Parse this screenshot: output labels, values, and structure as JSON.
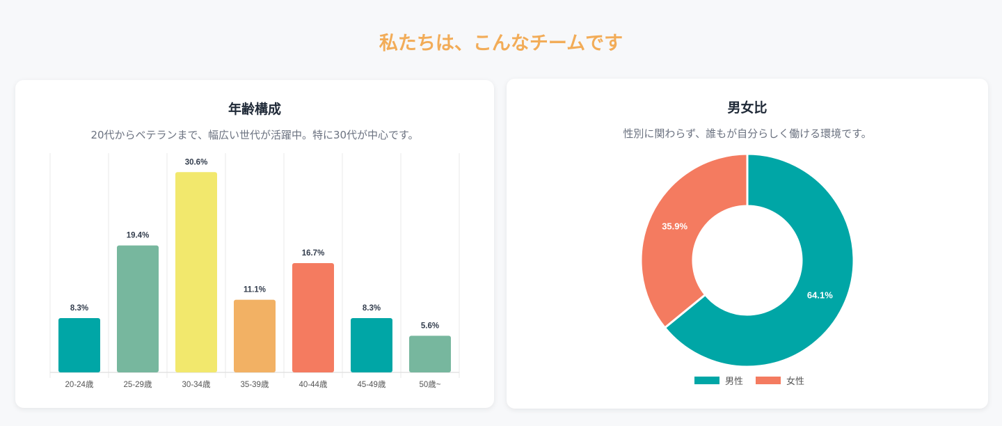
{
  "page_title": "私たちは、こんなチームです",
  "chart_data": [
    {
      "type": "bar",
      "title": "年齢構成",
      "subtitle": "20代からベテランまで、幅広い世代が活躍中。特に30代が中心です。",
      "categories": [
        "20-24歳",
        "25-29歳",
        "30-34歳",
        "35-39歳",
        "40-44歳",
        "45-49歳",
        "50歳~"
      ],
      "values": [
        8.3,
        19.4,
        30.6,
        11.1,
        16.7,
        8.3,
        5.6
      ],
      "labels": [
        "8.3%",
        "19.4%",
        "30.6%",
        "11.1%",
        "16.7%",
        "8.3%",
        "5.6%"
      ],
      "colors": [
        "#00a6a6",
        "#77b79e",
        "#f2e86d",
        "#f2b164",
        "#f47b60",
        "#00a6a6",
        "#77b79e"
      ],
      "ylim": [
        0,
        33.5
      ],
      "grid": "vertical"
    },
    {
      "type": "pie",
      "title": "男女比",
      "subtitle": "性別に関わらず、誰もが自分らしく働ける環境です。",
      "categories": [
        "男性",
        "女性"
      ],
      "values": [
        64.1,
        35.9
      ],
      "labels": [
        "64.1%",
        "35.9%"
      ],
      "colors": [
        "#00a6a6",
        "#f47b60"
      ],
      "legend": "bottom"
    }
  ]
}
